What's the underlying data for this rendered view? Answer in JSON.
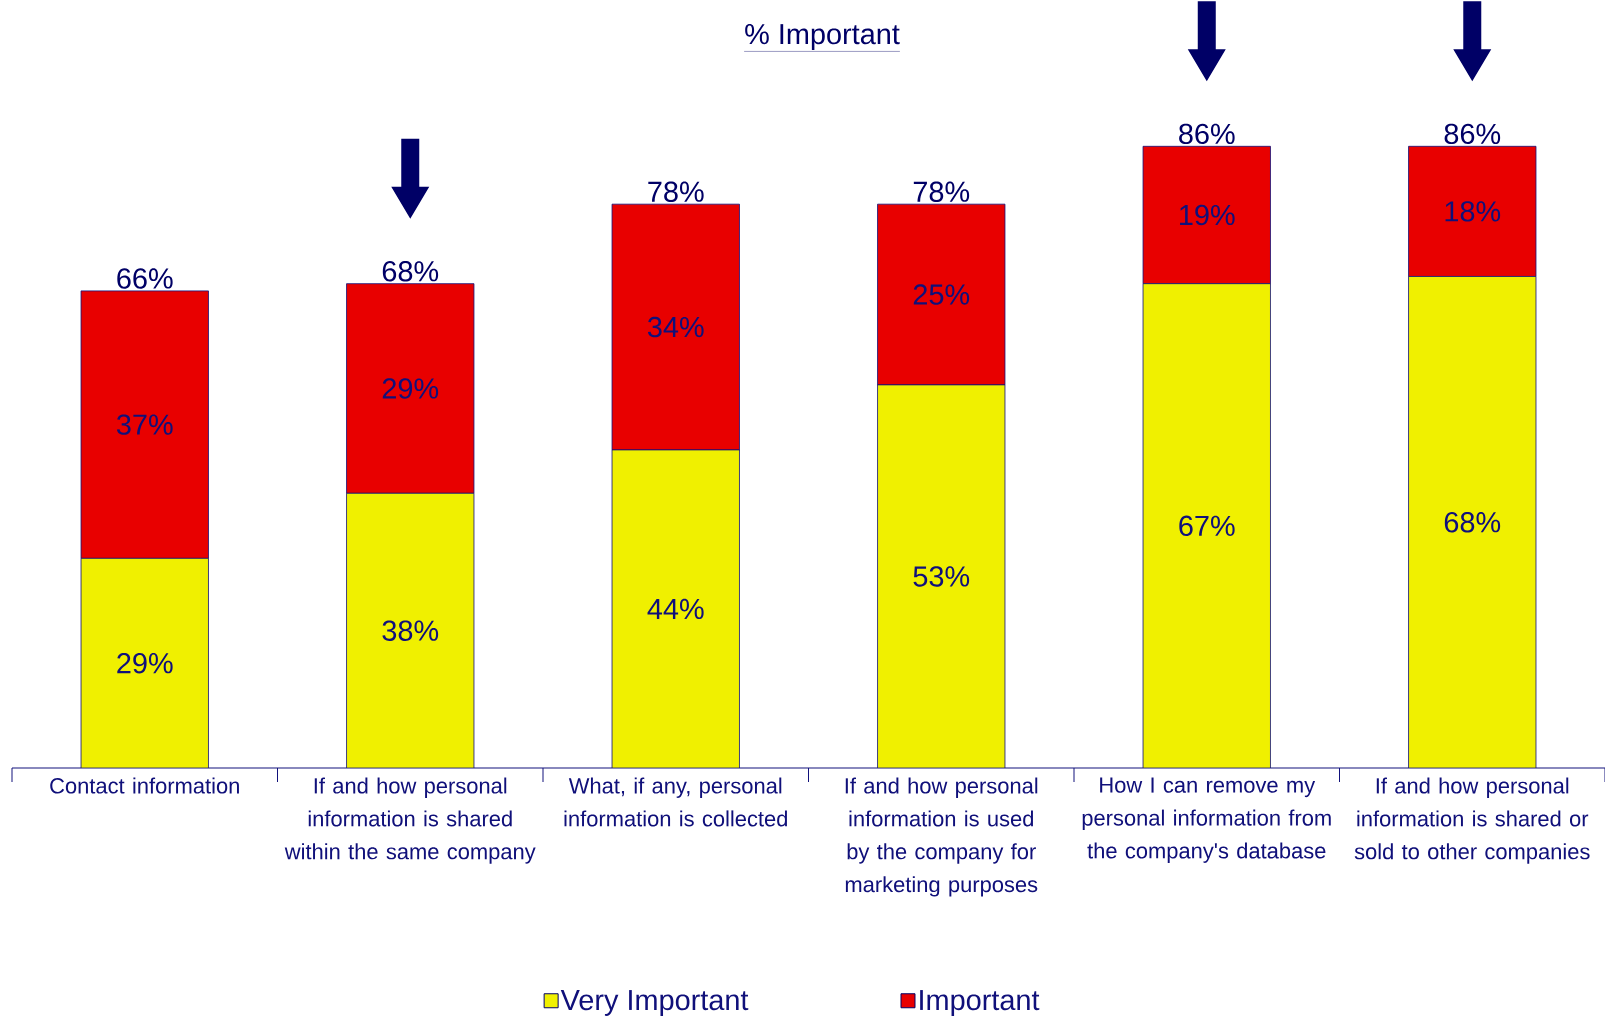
{
  "chart_data": {
    "type": "bar",
    "stacked": true,
    "title": "% Important",
    "categories": [
      "Contact information",
      "If and how personal information is shared within the same company",
      "What, if any, personal information is collected",
      "If and how personal information is used by the company for marketing purposes",
      "How I can remove my personal information from the company's database",
      "If and how personal information is shared or sold to other companies"
    ],
    "series": [
      {
        "name": "Very Important",
        "color": "#f0f000",
        "values": [
          29,
          38,
          44,
          53,
          67,
          68
        ],
        "value_labels": [
          "29%",
          "38%",
          "44%",
          "53%",
          "67%",
          "68%"
        ]
      },
      {
        "name": "Important",
        "color": "#e80000",
        "values": [
          37,
          29,
          34,
          25,
          19,
          18
        ],
        "value_labels": [
          "37%",
          "29%",
          "34%",
          "25%",
          "19%",
          "18%"
        ]
      }
    ],
    "totals": [
      "66%",
      "68%",
      "78%",
      "78%",
      "86%",
      "86%"
    ],
    "legend": "bottom",
    "tick_labels": "x"
  }
}
